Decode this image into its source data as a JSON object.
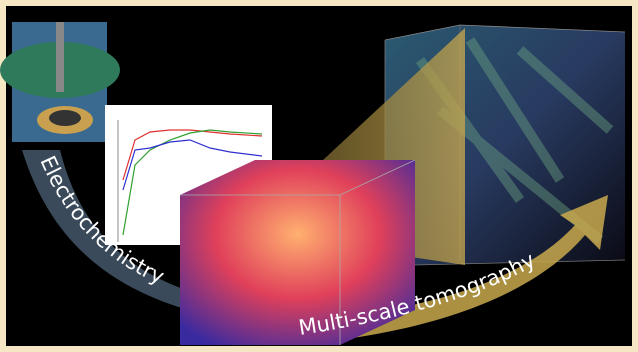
{
  "labels": {
    "left_arrow": "Electrochemistry",
    "right_arrow": "Multi-scale tomography"
  }
}
